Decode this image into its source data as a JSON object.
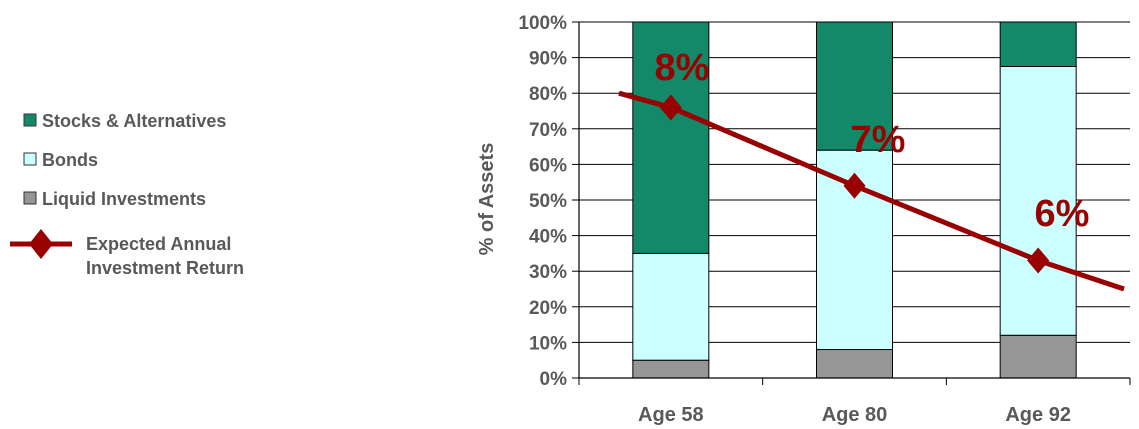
{
  "chart_data": {
    "type": "bar",
    "stacked": true,
    "categories": [
      "Age 58",
      "Age 80",
      "Age 92"
    ],
    "ylabel": "% of Assets",
    "ylim": [
      0,
      100
    ],
    "yticks": [
      "0%",
      "10%",
      "20%",
      "30%",
      "40%",
      "50%",
      "60%",
      "70%",
      "80%",
      "90%",
      "100%"
    ],
    "grid": true,
    "legend_position": "left",
    "series": [
      {
        "name": "Liquid Investments",
        "values": [
          5,
          8,
          12
        ],
        "color": "#969696"
      },
      {
        "name": "Bonds",
        "values": [
          30,
          56,
          75.5
        ],
        "color": "#ccffff"
      },
      {
        "name": "Stocks & Alternatives",
        "values": [
          65,
          36,
          12.5
        ],
        "color": "#13896a"
      }
    ],
    "line": {
      "name": "Expected Annual Investment Return",
      "name_lines": [
        "Expected Annual",
        "Investment Return"
      ],
      "color": "#990000",
      "points": [
        76,
        54,
        33
      ],
      "labels": [
        "8%",
        "7%",
        "6%"
      ],
      "start": 80,
      "end": 25
    }
  }
}
